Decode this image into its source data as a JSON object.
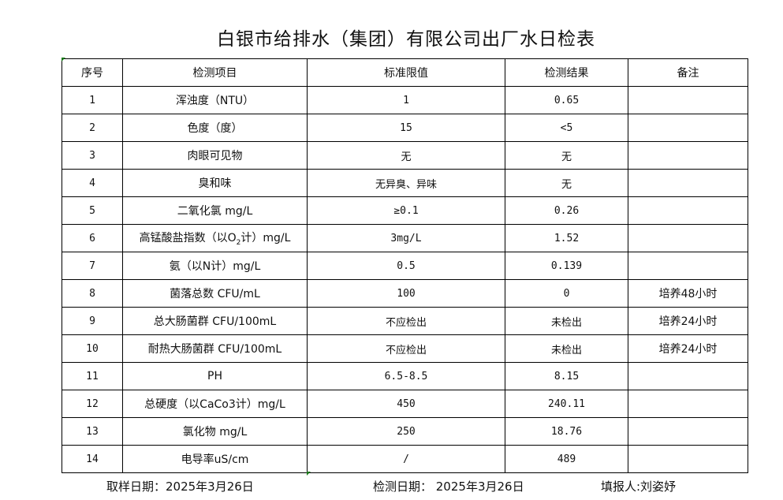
{
  "title": "白银市给排水（集团）有限公司出厂水日检表",
  "headers": [
    "序号",
    "检测项目",
    "标准限值",
    "检测结果",
    "备注"
  ],
  "rows": [
    {
      "no": "1",
      "item": "浑浊度（NTU）",
      "limit": "1",
      "result": "0.65",
      "note": ""
    },
    {
      "no": "2",
      "item": "色度（度）",
      "limit": "15",
      "result": "<5",
      "note": ""
    },
    {
      "no": "3",
      "item": "肉眼可见物",
      "limit": "无",
      "result": "无",
      "note": ""
    },
    {
      "no": "4",
      "item": "臭和味",
      "limit": "无异臭、异味",
      "result": "无",
      "note": ""
    },
    {
      "no": "5",
      "item": "二氧化氯 mg/L",
      "limit": "≥0.1",
      "result": "0.26",
      "note": ""
    },
    {
      "no": "6",
      "item": "高锰酸盐指数（以O",
      "item_sub": "2",
      "item_post": "计）mg/L",
      "limit": "3mg/L",
      "result": "1.52",
      "note": ""
    },
    {
      "no": "7",
      "item": "氨（以N计）mg/L",
      "limit": "0.5",
      "result": "0.139",
      "note": ""
    },
    {
      "no": "8",
      "item": "菌落总数 CFU/mL",
      "limit": "100",
      "result": "0",
      "note": "培养48小时"
    },
    {
      "no": "9",
      "item": "总大肠菌群 CFU/100mL",
      "limit": "不应检出",
      "result": "未检出",
      "note": "培养24小时"
    },
    {
      "no": "10",
      "item": "耐热大肠菌群 CFU/100mL",
      "limit": "不应检出",
      "result": "未检出",
      "note": "培养24小时"
    },
    {
      "no": "11",
      "item": "PH",
      "limit": "6.5-8.5",
      "result": "8.15",
      "note": ""
    },
    {
      "no": "12",
      "item": "总硬度（以CaCo3计）mg/L",
      "limit": "450",
      "result": "240.11",
      "note": ""
    },
    {
      "no": "13",
      "item": "氯化物 mg/L",
      "limit": "250",
      "result": "18.76",
      "note": ""
    },
    {
      "no": "14",
      "item": "电导率uS/cm",
      "limit": "/",
      "result": "489",
      "note": ""
    }
  ],
  "footer": {
    "sampling_date": "取样日期：2025年3月26日",
    "test_date": "检测日期： 2025年3月26日",
    "reporter": "填报人:刘姿妤"
  }
}
